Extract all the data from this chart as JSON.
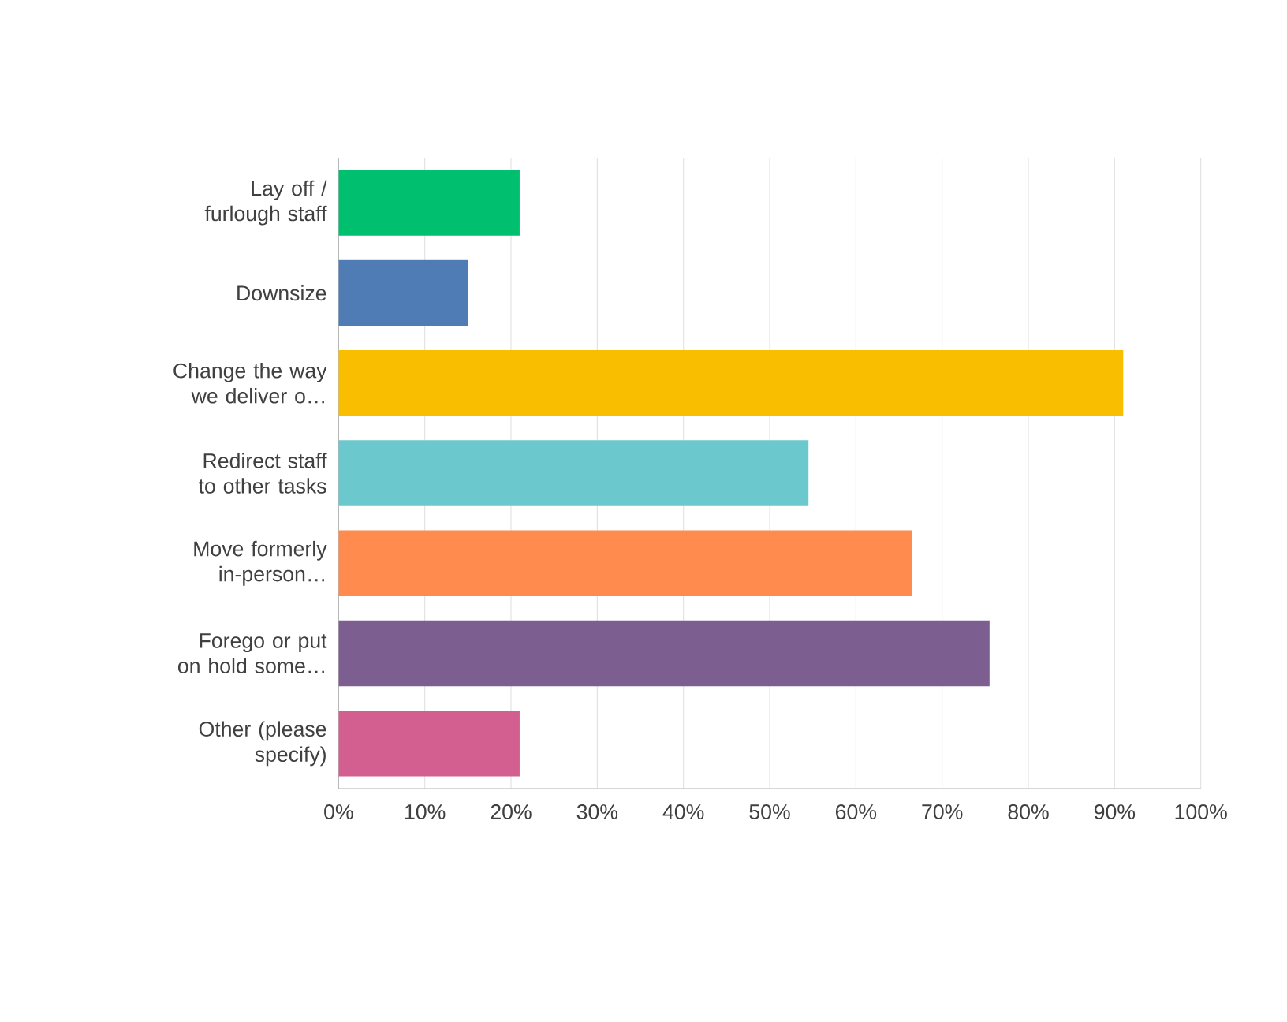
{
  "chart_data": {
    "type": "bar",
    "orientation": "horizontal",
    "categories": [
      "Lay off / furlough staff",
      "Downsize",
      "Change the way we deliver o…",
      "Redirect staff to other tasks",
      "Move formerly in-person…",
      "Forego or put on hold some…",
      "Other (please specify)"
    ],
    "values": [
      21,
      15,
      91,
      54.5,
      66.5,
      75.5,
      21
    ],
    "colors": [
      "#00bf6f",
      "#507cb6",
      "#f9be00",
      "#6bc8cd",
      "#ff8b4f",
      "#7d5e90",
      "#d25f90"
    ],
    "xlim": [
      0,
      100
    ],
    "xticks": [
      {
        "value": 0,
        "label": "0%"
      },
      {
        "value": 10,
        "label": "10%"
      },
      {
        "value": 20,
        "label": "20%"
      },
      {
        "value": 30,
        "label": "30%"
      },
      {
        "value": 40,
        "label": "40%"
      },
      {
        "value": 50,
        "label": "50%"
      },
      {
        "value": 60,
        "label": "60%"
      },
      {
        "value": 70,
        "label": "70%"
      },
      {
        "value": 80,
        "label": "80%"
      },
      {
        "value": 90,
        "label": "90%"
      },
      {
        "value": 100,
        "label": "100%"
      }
    ],
    "grid": "x"
  }
}
